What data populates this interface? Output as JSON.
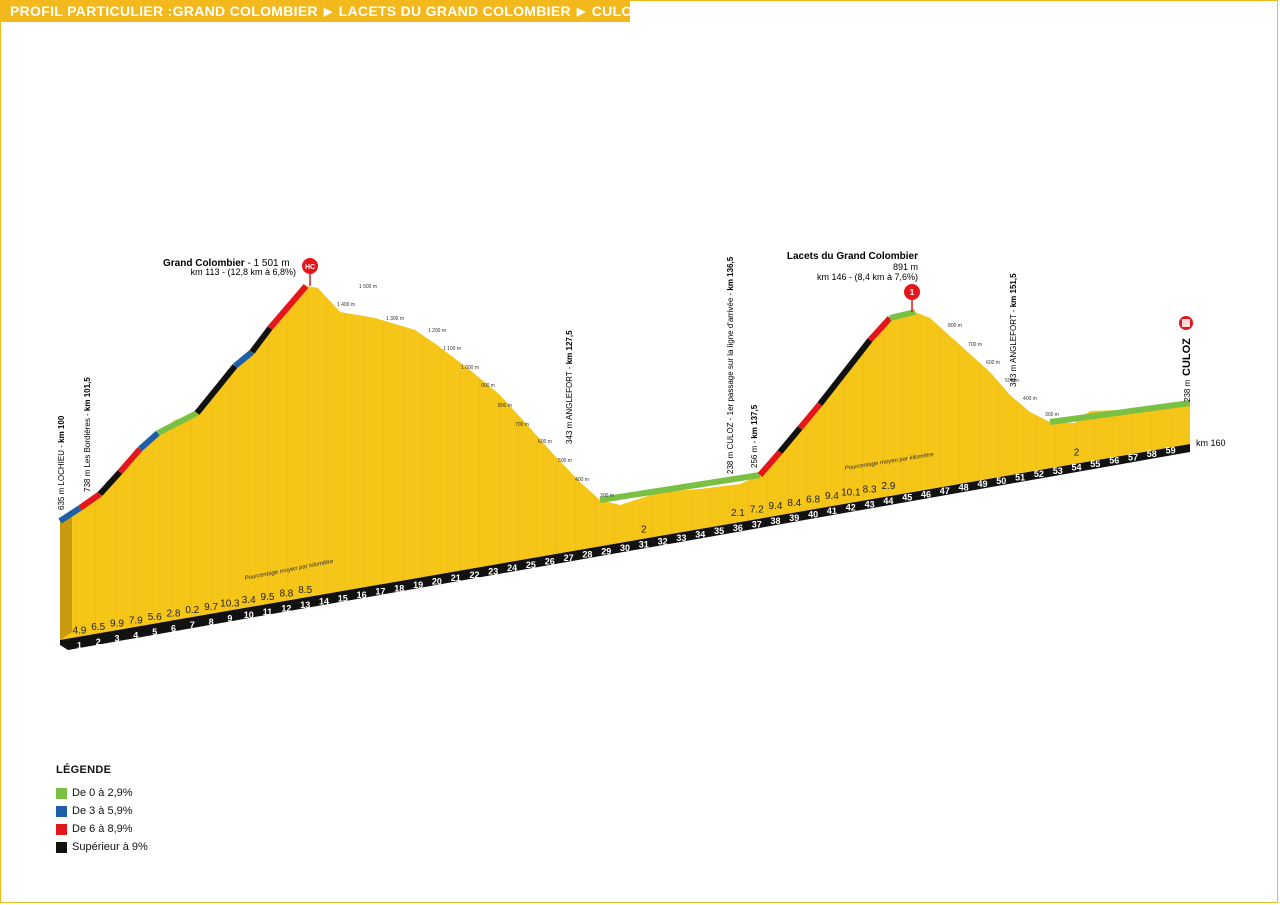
{
  "header": {
    "prefix": "PROFIL PARTICULIER :",
    "parts": [
      "GRAND COLOMBIER",
      "LACETS DU GRAND COLOMBIER",
      "CULOZ"
    ],
    "separator": "▶"
  },
  "colors": {
    "accent": "#f2b81c",
    "terrain": "#f5c518",
    "green": "#7ac143",
    "blue": "#1f5fa8",
    "red": "#e3161b",
    "black": "#111111"
  },
  "summits": [
    {
      "name": "Grand Colombier",
      "alt": " - 1 501 m",
      "detail": "km 113 - (12,8 km à 6,8%)",
      "category": "HC"
    },
    {
      "name": "Lacets du Grand Colombier",
      "alt": "891 m",
      "detail": "km 146 - (8,4 km à 7,6%)",
      "category": "1"
    }
  ],
  "finish": {
    "name": "CULOZ",
    "alt": "238 m",
    "km": "km 160"
  },
  "waypoints": [
    {
      "label": "635 m  LOCHIEU - ",
      "km": "km 100"
    },
    {
      "label": "738 m  Les Bordières - ",
      "km": "km 101,5"
    },
    {
      "label": "343 m  ANGLEFORT - ",
      "km": "km 127,5"
    },
    {
      "label": "238 m  CULOZ - 1er passage sur la ligne d'arrivée - ",
      "km": "km 136,5"
    },
    {
      "label": "256 m - ",
      "km": "km 137,5"
    },
    {
      "label": "343 m  ANGLEFORT - ",
      "km": "km 151,5"
    }
  ],
  "altitude_ticks": [
    "1 500 m",
    "1 400 m",
    "1 300 m",
    "1 200 m",
    "1 100 m",
    "1 000 m",
    "900 m",
    "800 m",
    "700 m",
    "600 m",
    "500 m",
    "400 m",
    "300 m",
    "800 m",
    "700 m",
    "600 m",
    "500 m",
    "400 m",
    "300 m"
  ],
  "avg_label": "Pourcentage moyen par kilomètre",
  "chart_data": {
    "type": "area",
    "x_unit": "km",
    "km_marks": [
      "1",
      "2",
      "3",
      "4",
      "5",
      "6",
      "7",
      "8",
      "9",
      "10",
      "11",
      "12",
      "13",
      "14",
      "15",
      "16",
      "17",
      "18",
      "19",
      "20",
      "21",
      "22",
      "23",
      "24",
      "25",
      "26",
      "27",
      "28",
      "29",
      "30",
      "31",
      "32",
      "33",
      "34",
      "35",
      "36",
      "37",
      "38",
      "39",
      "40",
      "41",
      "42",
      "43",
      "44",
      "45",
      "46",
      "47",
      "48",
      "49",
      "50",
      "51",
      "52",
      "53",
      "54",
      "55",
      "56",
      "57",
      "58",
      "59"
    ],
    "gradients_climb1": [
      "4.9",
      "6.5",
      "9.9",
      "7.9",
      "5.6",
      "2.8",
      "0.2",
      "9.7",
      "10.3",
      "3.4",
      "9.5",
      "8.8",
      "8.5"
    ],
    "gradients_mid": [
      "2"
    ],
    "gradients_climb2": [
      "2.1",
      "7.2",
      "9.4",
      "8.4",
      "6.8",
      "9.4",
      "10.1",
      "8.3",
      "2.9"
    ],
    "gradients_end": [
      "2"
    ],
    "profile_km": [
      0,
      1.5,
      5,
      8.5,
      13,
      16,
      19.5,
      24,
      27,
      28,
      30,
      33,
      36,
      37.5,
      43,
      46,
      48,
      50,
      52,
      54,
      57,
      60
    ],
    "profile_alt_m": [
      635,
      738,
      950,
      1010,
      1501,
      1330,
      1160,
      750,
      400,
      290,
      270,
      275,
      238,
      256,
      820,
      891,
      700,
      500,
      370,
      330,
      290,
      238
    ]
  },
  "legend": {
    "title": "LÉGENDE",
    "items": [
      {
        "label": "De 0 à 2,9%",
        "color": "#7ac143"
      },
      {
        "label": "De 3 à 5,9%",
        "color": "#1f5fa8"
      },
      {
        "label": "De 6 à 8,9%",
        "color": "#e3161b"
      },
      {
        "label": "Supérieur à 9%",
        "color": "#111111"
      }
    ]
  }
}
